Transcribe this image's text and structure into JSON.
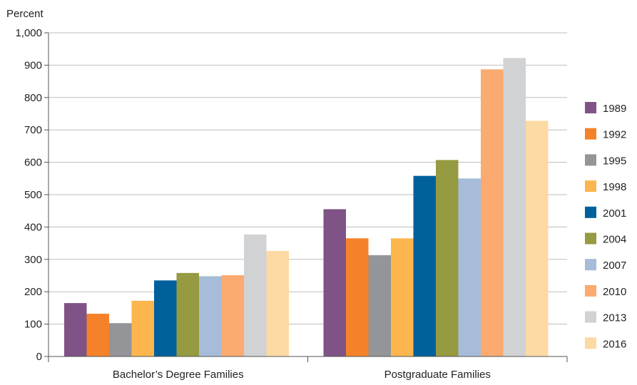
{
  "chart_data": {
    "type": "bar",
    "ylabel": "Percent",
    "xlabel": "",
    "ylim": [
      0,
      1000
    ],
    "yticks": [
      0,
      100,
      200,
      300,
      400,
      500,
      600,
      700,
      800,
      900,
      1000
    ],
    "ytick_labels": [
      "0",
      "100",
      "200",
      "300",
      "400",
      "500",
      "600",
      "700",
      "800",
      "900",
      "1,000"
    ],
    "grid": true,
    "legend_position": "right",
    "categories": [
      "Bachelor’s Degree Families",
      "Postgraduate Families"
    ],
    "series": [
      {
        "name": "1989",
        "color": "#7f5385",
        "values": [
          165,
          455
        ]
      },
      {
        "name": "1992",
        "color": "#f5822a",
        "values": [
          132,
          365
        ]
      },
      {
        "name": "1995",
        "color": "#939598",
        "values": [
          103,
          313
        ]
      },
      {
        "name": "1998",
        "color": "#fdb64e",
        "values": [
          172,
          365
        ]
      },
      {
        "name": "2001",
        "color": "#00609c",
        "values": [
          235,
          558
        ]
      },
      {
        "name": "2004",
        "color": "#969a40",
        "values": [
          258,
          607
        ]
      },
      {
        "name": "2007",
        "color": "#a6bcd9",
        "values": [
          248,
          550
        ]
      },
      {
        "name": "2010",
        "color": "#fbaa70",
        "values": [
          251,
          887
        ]
      },
      {
        "name": "2013",
        "color": "#d1d2d4",
        "values": [
          377,
          922
        ]
      },
      {
        "name": "2016",
        "color": "#fddaa3",
        "values": [
          326,
          728
        ]
      }
    ]
  }
}
